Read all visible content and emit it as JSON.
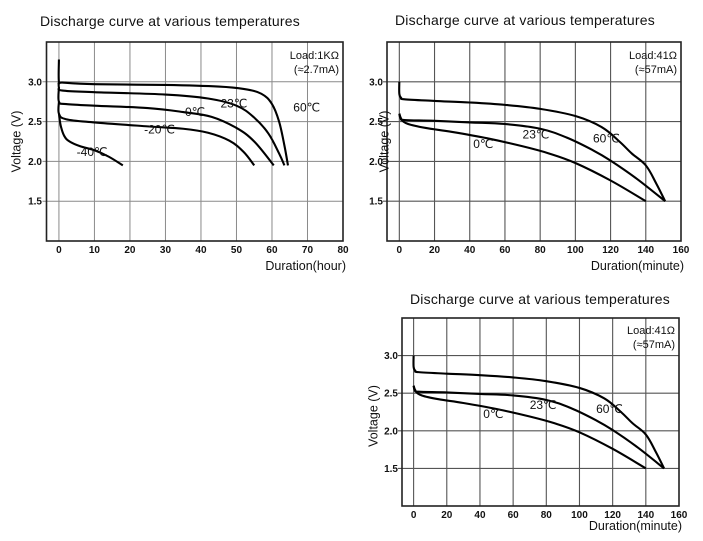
{
  "chart_data": [
    {
      "id": "chart1",
      "type": "line",
      "title": "Discharge curve at various temperatures",
      "xlabel": "Duration(hour)",
      "ylabel": "Voltage (V)",
      "xlim": [
        -3.5,
        80
      ],
      "ylim": [
        1.0,
        3.5
      ],
      "xticks": [
        0,
        10,
        20,
        30,
        40,
        50,
        60,
        70,
        80
      ],
      "yticks": [
        1.5,
        2.0,
        2.5,
        3.0
      ],
      "ytick_labels": [
        "1.5",
        "2.0",
        "2.5",
        "3.0"
      ],
      "grid": true,
      "annotation": [
        "Load:1KΩ",
        "(≈2.7mA)"
      ],
      "series": [
        {
          "name": "60℃",
          "label_at": [
            66,
            2.63
          ],
          "points": [
            [
              0,
              3.28
            ],
            [
              0,
              3.0
            ],
            [
              1,
              2.99
            ],
            [
              10,
              2.97
            ],
            [
              30,
              2.96
            ],
            [
              45,
              2.94
            ],
            [
              52,
              2.91
            ],
            [
              57,
              2.85
            ],
            [
              60,
              2.72
            ],
            [
              62,
              2.5
            ],
            [
              63.5,
              2.2
            ],
            [
              64.5,
              1.95
            ]
          ]
        },
        {
          "name": "23℃",
          "label_at": [
            45.5,
            2.68
          ],
          "points": [
            [
              0,
              3.0
            ],
            [
              0,
              2.93
            ],
            [
              1,
              2.89
            ],
            [
              10,
              2.87
            ],
            [
              30,
              2.84
            ],
            [
              42,
              2.79
            ],
            [
              50,
              2.7
            ],
            [
              55,
              2.55
            ],
            [
              59,
              2.35
            ],
            [
              62,
              2.1
            ],
            [
              63.5,
              1.95
            ]
          ]
        },
        {
          "name": "0℃",
          "label_at": [
            35.5,
            2.57
          ],
          "points": [
            [
              0,
              2.93
            ],
            [
              0,
              2.75
            ],
            [
              2,
              2.72
            ],
            [
              10,
              2.7
            ],
            [
              25,
              2.67
            ],
            [
              35,
              2.62
            ],
            [
              43,
              2.56
            ],
            [
              50,
              2.42
            ],
            [
              55,
              2.25
            ],
            [
              60.5,
              1.95
            ]
          ]
        },
        {
          "name": "-20℃",
          "label_at": [
            24,
            2.35
          ],
          "points": [
            [
              0,
              2.75
            ],
            [
              0,
              2.6
            ],
            [
              2,
              2.53
            ],
            [
              10,
              2.49
            ],
            [
              25,
              2.44
            ],
            [
              35,
              2.41
            ],
            [
              42,
              2.36
            ],
            [
              48,
              2.26
            ],
            [
              52,
              2.12
            ],
            [
              55,
              1.95
            ]
          ]
        },
        {
          "name": "-40℃",
          "label_at": [
            5,
            2.07
          ],
          "points": [
            [
              0,
              2.6
            ],
            [
              0.5,
              2.45
            ],
            [
              1.5,
              2.32
            ],
            [
              3,
              2.25
            ],
            [
              6,
              2.19
            ],
            [
              10,
              2.14
            ],
            [
              14,
              2.06
            ],
            [
              18,
              1.95
            ]
          ]
        }
      ]
    },
    {
      "id": "chart2",
      "type": "line",
      "title": "Discharge curve at various temperatures",
      "xlabel": "Duration(minute)",
      "ylabel": "Voltage (V)",
      "xlim": [
        -7,
        160
      ],
      "ylim": [
        1.0,
        3.5
      ],
      "xticks": [
        0,
        20,
        40,
        60,
        80,
        100,
        120,
        140,
        160
      ],
      "yticks": [
        1.5,
        2.0,
        2.5,
        3.0
      ],
      "ytick_labels": [
        "1.5",
        "2.0",
        "2.5",
        "3.0"
      ],
      "grid": true,
      "annotation": [
        "Load:41Ω",
        "(≈57mA)"
      ],
      "series": [
        {
          "name": "60℃",
          "label_at": [
            110,
            2.24
          ],
          "points": [
            [
              0,
              3.0
            ],
            [
              0,
              2.85
            ],
            [
              1,
              2.8
            ],
            [
              3,
              2.78
            ],
            [
              20,
              2.76
            ],
            [
              40,
              2.74
            ],
            [
              60,
              2.71
            ],
            [
              80,
              2.66
            ],
            [
              100,
              2.57
            ],
            [
              115,
              2.43
            ],
            [
              125,
              2.25
            ],
            [
              132,
              2.1
            ],
            [
              140,
              1.95
            ],
            [
              146,
              1.72
            ],
            [
              151,
              1.5
            ]
          ]
        },
        {
          "name": "23℃",
          "label_at": [
            70,
            2.29
          ],
          "points": [
            [
              0,
              2.6
            ],
            [
              1,
              2.54
            ],
            [
              3,
              2.52
            ],
            [
              20,
              2.51
            ],
            [
              40,
              2.49
            ],
            [
              60,
              2.47
            ],
            [
              80,
              2.41
            ],
            [
              95,
              2.3
            ],
            [
              110,
              2.14
            ],
            [
              120,
              2.01
            ],
            [
              135,
              1.78
            ],
            [
              151,
              1.5
            ]
          ]
        },
        {
          "name": "0℃",
          "label_at": [
            42,
            2.17
          ],
          "points": [
            [
              0,
              2.6
            ],
            [
              1,
              2.53
            ],
            [
              5,
              2.47
            ],
            [
              15,
              2.42
            ],
            [
              30,
              2.37
            ],
            [
              50,
              2.29
            ],
            [
              70,
              2.19
            ],
            [
              85,
              2.1
            ],
            [
              100,
              1.98
            ],
            [
              120,
              1.76
            ],
            [
              140,
              1.5
            ]
          ]
        }
      ]
    },
    {
      "id": "chart3",
      "type": "line",
      "title": "Discharge curve at various temperatures",
      "xlabel": "Duration(minute)",
      "ylabel": "Voltage (V)",
      "xlim": [
        -7,
        160
      ],
      "ylim": [
        1.0,
        3.5
      ],
      "xticks": [
        0,
        20,
        40,
        60,
        80,
        100,
        120,
        140,
        160
      ],
      "yticks": [
        1.5,
        2.0,
        2.5,
        3.0
      ],
      "ytick_labels": [
        "1.5",
        "2.0",
        "2.5",
        "3.0"
      ],
      "grid": true,
      "annotation": [
        "Load:41Ω",
        "(≈57mA)"
      ],
      "series": [
        {
          "name": "60℃",
          "label_at": [
            110,
            2.24
          ],
          "points": [
            [
              0,
              3.0
            ],
            [
              0,
              2.85
            ],
            [
              1,
              2.8
            ],
            [
              3,
              2.78
            ],
            [
              20,
              2.76
            ],
            [
              40,
              2.74
            ],
            [
              60,
              2.71
            ],
            [
              80,
              2.66
            ],
            [
              100,
              2.57
            ],
            [
              115,
              2.43
            ],
            [
              125,
              2.25
            ],
            [
              132,
              2.1
            ],
            [
              140,
              1.95
            ],
            [
              146,
              1.72
            ],
            [
              151,
              1.5
            ]
          ]
        },
        {
          "name": "23℃",
          "label_at": [
            70,
            2.29
          ],
          "points": [
            [
              0,
              2.6
            ],
            [
              1,
              2.54
            ],
            [
              3,
              2.52
            ],
            [
              20,
              2.51
            ],
            [
              40,
              2.49
            ],
            [
              60,
              2.47
            ],
            [
              80,
              2.41
            ],
            [
              95,
              2.3
            ],
            [
              110,
              2.14
            ],
            [
              120,
              2.01
            ],
            [
              135,
              1.78
            ],
            [
              151,
              1.5
            ]
          ]
        },
        {
          "name": "0℃",
          "label_at": [
            42,
            2.17
          ],
          "points": [
            [
              0,
              2.6
            ],
            [
              1,
              2.53
            ],
            [
              5,
              2.47
            ],
            [
              15,
              2.42
            ],
            [
              30,
              2.37
            ],
            [
              50,
              2.29
            ],
            [
              70,
              2.19
            ],
            [
              85,
              2.1
            ],
            [
              100,
              1.98
            ],
            [
              120,
              1.76
            ],
            [
              140,
              1.5
            ]
          ]
        }
      ]
    }
  ]
}
